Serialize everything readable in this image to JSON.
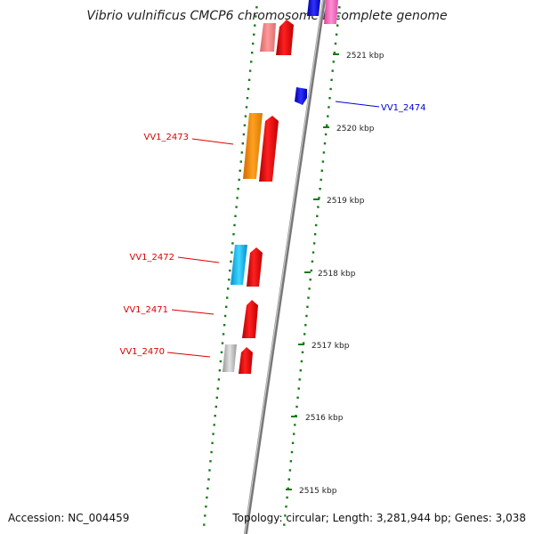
{
  "title": "Vibrio vulnificus CMCP6 chromosome I, complete genome",
  "footer": {
    "accession": "Accession: NC_004459",
    "summary": "Topology: circular; Length: 3,281,944 bp; Genes: 3,038"
  },
  "colors": {
    "forward": "#ee1111",
    "reverse": "#1111ee",
    "tick": "#1a7a1a",
    "backbone": "#888888"
  },
  "ticks": [
    "2521 kbp",
    "2520 kbp",
    "2519 kbp",
    "2518 kbp",
    "2517 kbp",
    "2516 kbp",
    "2515 kbp"
  ],
  "gene_labels": [
    {
      "name": "VV1_2474",
      "color": "#0000dd"
    },
    {
      "name": "VV1_2473",
      "color": "#dd0000"
    },
    {
      "name": "VV1_2472",
      "color": "#dd0000"
    },
    {
      "name": "VV1_2471",
      "color": "#dd0000"
    },
    {
      "name": "VV1_2470",
      "color": "#dd0000"
    }
  ]
}
